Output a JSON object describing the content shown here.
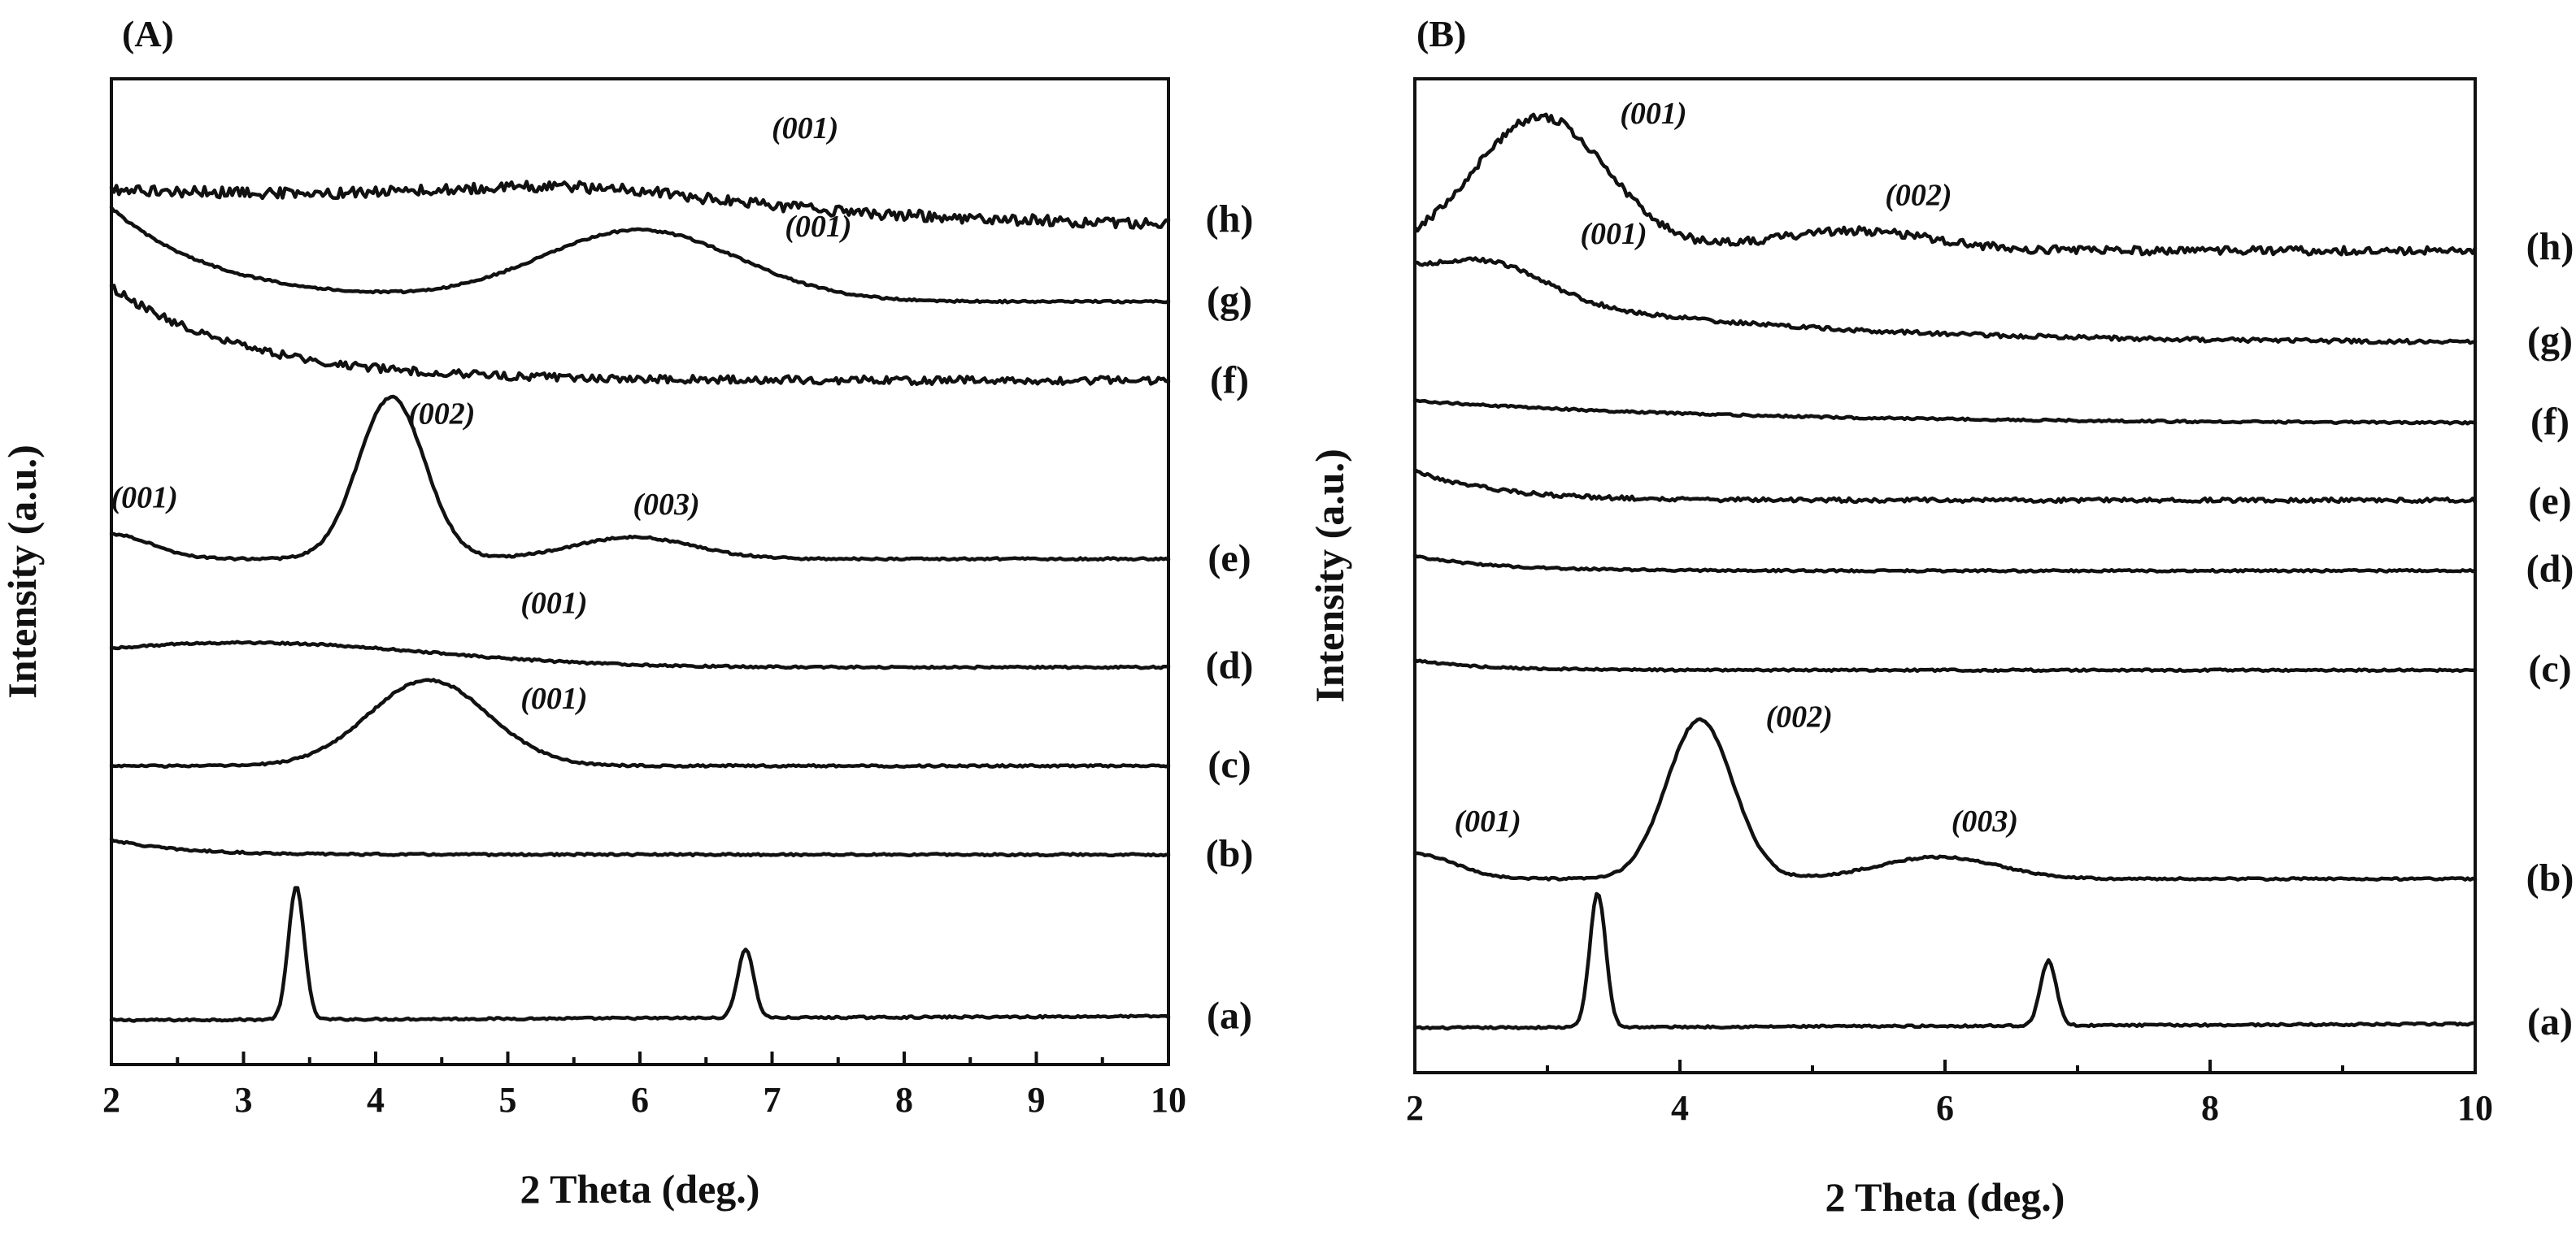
{
  "chart_data": [
    {
      "panel": "(A)",
      "type": "line",
      "xlabel": "2 Theta (deg.)",
      "ylabel": "Intensity (a.u.)",
      "xlim": [
        2,
        10
      ],
      "ylim": [
        0,
        100
      ],
      "xticks": [
        2,
        3,
        4,
        5,
        6,
        7,
        8,
        9,
        10
      ],
      "grid": false,
      "series": [
        {
          "name": "(a)",
          "base": 4.5,
          "slope": 0.05,
          "noise": 0.1,
          "peaks": [
            {
              "x": 3.4,
              "h": 13.5,
              "w": 0.06
            },
            {
              "x": 6.8,
              "h": 7.0,
              "w": 0.06
            }
          ]
        },
        {
          "name": "(b)",
          "base": 21.3,
          "decay": {
            "amp": 1.5,
            "tau": 0.5
          },
          "noise": 0.1,
          "peaks": []
        },
        {
          "name": "(c)",
          "base": 30.3,
          "noise": 0.1,
          "peaks": [
            {
              "x": 4.4,
              "h": 8.7,
              "w": 0.45
            }
          ]
        },
        {
          "name": "(d)",
          "base": 40.3,
          "noise": 0.1,
          "peaks": [
            {
              "x": 3.0,
              "h": 2.5,
              "w": 1.4
            }
          ]
        },
        {
          "name": "(e)",
          "base": 51.3,
          "noise": 0.1,
          "peaks": [
            {
              "x": 2.0,
              "h": 2.5,
              "w": 0.3
            },
            {
              "x": 4.12,
              "h": 16.4,
              "w": 0.25
            },
            {
              "x": 5.95,
              "h": 2.2,
              "w": 0.45
            }
          ]
        },
        {
          "name": "(f)",
          "base": 69.4,
          "decay": {
            "amp": 9.5,
            "tau": 1.0
          },
          "noise": 0.4,
          "peaks": []
        },
        {
          "name": "(g)",
          "base": 77.4,
          "decay": {
            "amp": 9.5,
            "tau": 0.8
          },
          "noise": 0.1,
          "peaks": [
            {
              "x": 6.0,
              "h": 7.2,
              "w": 0.75
            }
          ]
        },
        {
          "name": "(h)",
          "base": 88.8,
          "slope": -0.45,
          "noise": 0.55,
          "peaks": [
            {
              "x": 5.5,
              "h": 1.8,
              "w": 1.0
            }
          ]
        }
      ],
      "annotations": [
        {
          "text": "(001)",
          "x": 2.25,
          "y": 56.5
        },
        {
          "text": "(002)",
          "x": 4.5,
          "y": 65.0
        },
        {
          "text": "(003)",
          "x": 6.2,
          "y": 55.8
        },
        {
          "text": "(001)",
          "x": 5.35,
          "y": 45.8
        },
        {
          "text": "(001)",
          "x": 5.35,
          "y": 36.1
        },
        {
          "text": "(001)",
          "x": 7.35,
          "y": 84.0
        },
        {
          "text": "(001)",
          "x": 7.25,
          "y": 94.0
        }
      ]
    },
    {
      "panel": "(B)",
      "type": "line",
      "xlabel": "2 Theta (deg.)",
      "ylabel": "Intensity (a.u.)",
      "xlim": [
        2,
        10
      ],
      "ylim": [
        0,
        100
      ],
      "xticks": [
        2,
        4,
        6,
        8,
        10
      ],
      "grid": false,
      "series": [
        {
          "name": "(a)",
          "base": 4.5,
          "slope": 0.05,
          "noise": 0.1,
          "peaks": [
            {
              "x": 3.38,
              "h": 13.5,
              "w": 0.06
            },
            {
              "x": 6.78,
              "h": 6.5,
              "w": 0.06
            }
          ]
        },
        {
          "name": "(b)",
          "base": 19.5,
          "noise": 0.1,
          "peaks": [
            {
              "x": 2.0,
              "h": 2.5,
              "w": 0.3
            },
            {
              "x": 4.15,
              "h": 16.0,
              "w": 0.25
            },
            {
              "x": 5.95,
              "h": 2.2,
              "w": 0.45
            }
          ]
        },
        {
          "name": "(c)",
          "base": 40.5,
          "decay": {
            "amp": 1.0,
            "tau": 0.5
          },
          "noise": 0.1,
          "peaks": []
        },
        {
          "name": "(d)",
          "base": 50.5,
          "decay": {
            "amp": 1.5,
            "tau": 0.6
          },
          "noise": 0.1,
          "peaks": []
        },
        {
          "name": "(e)",
          "base": 57.6,
          "decay": {
            "amp": 3.0,
            "tau": 0.6
          },
          "noise": 0.2,
          "peaks": []
        },
        {
          "name": "(f)",
          "base": 65.3,
          "decay": {
            "amp": 2.3,
            "tau": 2.5
          },
          "noise": 0.1,
          "peaks": []
        },
        {
          "name": "(g)",
          "base": 73.4,
          "decay": {
            "amp": 7.0,
            "tau": 2.0
          },
          "noise": 0.2,
          "peaks": [
            {
              "x": 2.6,
              "h": 3.0,
              "w": 0.4
            }
          ]
        },
        {
          "name": "(h)",
          "base": 82.7,
          "noise": 0.4,
          "peaks": [
            {
              "x": 2.95,
              "h": 13.5,
              "w": 0.5
            },
            {
              "x": 5.3,
              "h": 2.0,
              "w": 0.6
            }
          ]
        }
      ],
      "annotations": [
        {
          "text": "(001)",
          "x": 3.8,
          "y": 95.5
        },
        {
          "text": "(002)",
          "x": 5.8,
          "y": 87.3
        },
        {
          "text": "(001)",
          "x": 3.5,
          "y": 83.4
        },
        {
          "text": "(002)",
          "x": 4.9,
          "y": 34.8
        },
        {
          "text": "(001)",
          "x": 2.55,
          "y": 24.3
        },
        {
          "text": "(003)",
          "x": 6.3,
          "y": 24.3
        }
      ]
    }
  ]
}
